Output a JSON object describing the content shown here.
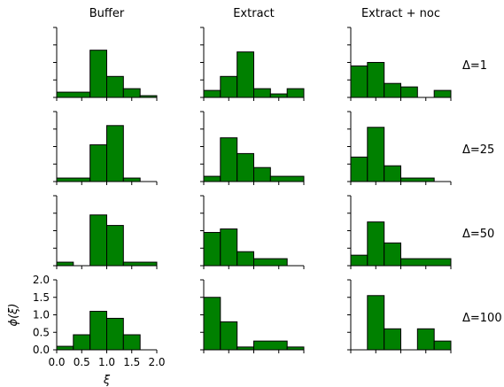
{
  "chart_data": {
    "type": "bar",
    "column_titles": [
      "Buffer",
      "Extract",
      "Extract + noc"
    ],
    "row_labels": [
      "Δ=1",
      "Δ=25",
      "Δ=50",
      "Δ=100"
    ],
    "xlabel": "ξ",
    "ylabel": "ϕ(ξ)",
    "xlim": [
      0.0,
      2.0
    ],
    "ylim": [
      0.0,
      2.0
    ],
    "xticks": [
      "0.0",
      "0.5",
      "1.0",
      "1.5",
      "2.0"
    ],
    "yticks": [
      "0.0",
      "0.5",
      "1.0",
      "1.5",
      "2.0"
    ],
    "bar_color": "#008000",
    "panels": [
      {
        "row": 0,
        "col": 0,
        "bins": [
          [
            0.0,
            0.667,
            0.15
          ],
          [
            0.667,
            1.0,
            1.35
          ],
          [
            1.0,
            1.333,
            0.6
          ],
          [
            1.333,
            1.667,
            0.25
          ],
          [
            1.667,
            2.0,
            0.05
          ]
        ]
      },
      {
        "row": 0,
        "col": 1,
        "bins": [
          [
            0.0,
            0.333,
            0.2
          ],
          [
            0.333,
            0.667,
            0.6
          ],
          [
            0.667,
            1.0,
            1.3
          ],
          [
            1.0,
            1.333,
            0.25
          ],
          [
            1.333,
            1.667,
            0.1
          ],
          [
            1.667,
            2.0,
            0.25
          ]
        ]
      },
      {
        "row": 0,
        "col": 2,
        "bins": [
          [
            0.0,
            0.333,
            0.9
          ],
          [
            0.333,
            0.667,
            1.0
          ],
          [
            0.667,
            1.0,
            0.4
          ],
          [
            1.0,
            1.333,
            0.3
          ],
          [
            1.333,
            1.667,
            0.0
          ],
          [
            1.667,
            2.0,
            0.2
          ]
        ]
      },
      {
        "row": 1,
        "col": 0,
        "bins": [
          [
            0.0,
            0.667,
            0.1
          ],
          [
            0.667,
            1.0,
            1.05
          ],
          [
            1.0,
            1.333,
            1.6
          ],
          [
            1.333,
            1.667,
            0.1
          ]
        ]
      },
      {
        "row": 1,
        "col": 1,
        "bins": [
          [
            0.0,
            0.333,
            0.15
          ],
          [
            0.333,
            0.667,
            1.25
          ],
          [
            0.667,
            1.0,
            0.8
          ],
          [
            1.0,
            1.333,
            0.4
          ],
          [
            1.333,
            2.0,
            0.15
          ]
        ]
      },
      {
        "row": 1,
        "col": 2,
        "bins": [
          [
            0.0,
            0.333,
            0.7
          ],
          [
            0.333,
            0.667,
            1.55
          ],
          [
            0.667,
            1.0,
            0.45
          ],
          [
            1.0,
            1.667,
            0.1
          ]
        ]
      },
      {
        "row": 2,
        "col": 0,
        "bins": [
          [
            0.0,
            0.333,
            0.1
          ],
          [
            0.333,
            0.667,
            0.0
          ],
          [
            0.667,
            1.0,
            1.45
          ],
          [
            1.0,
            1.333,
            1.15
          ],
          [
            1.333,
            2.0,
            0.1
          ]
        ]
      },
      {
        "row": 2,
        "col": 1,
        "bins": [
          [
            0.0,
            0.333,
            0.95
          ],
          [
            0.333,
            0.667,
            1.05
          ],
          [
            0.667,
            1.0,
            0.4
          ],
          [
            1.0,
            1.667,
            0.2
          ]
        ]
      },
      {
        "row": 2,
        "col": 2,
        "bins": [
          [
            0.0,
            0.333,
            0.3
          ],
          [
            0.333,
            0.667,
            1.25
          ],
          [
            0.667,
            1.0,
            0.65
          ],
          [
            1.0,
            2.0,
            0.2
          ]
        ]
      },
      {
        "row": 3,
        "col": 0,
        "bins": [
          [
            0.0,
            0.333,
            0.1
          ],
          [
            0.333,
            0.667,
            0.43
          ],
          [
            0.667,
            1.0,
            1.1
          ],
          [
            1.0,
            1.333,
            0.9
          ],
          [
            1.333,
            1.667,
            0.43
          ]
        ]
      },
      {
        "row": 3,
        "col": 1,
        "bins": [
          [
            0.0,
            0.333,
            1.5
          ],
          [
            0.333,
            0.667,
            0.8
          ],
          [
            0.667,
            1.0,
            0.08
          ],
          [
            1.0,
            1.667,
            0.25
          ],
          [
            1.667,
            2.0,
            0.08
          ]
        ]
      },
      {
        "row": 3,
        "col": 2,
        "bins": [
          [
            0.0,
            0.333,
            0.0
          ],
          [
            0.333,
            0.667,
            1.55
          ],
          [
            0.667,
            1.0,
            0.6
          ],
          [
            1.0,
            1.333,
            0.0
          ],
          [
            1.333,
            1.667,
            0.6
          ],
          [
            1.667,
            2.0,
            0.25
          ]
        ]
      }
    ]
  }
}
